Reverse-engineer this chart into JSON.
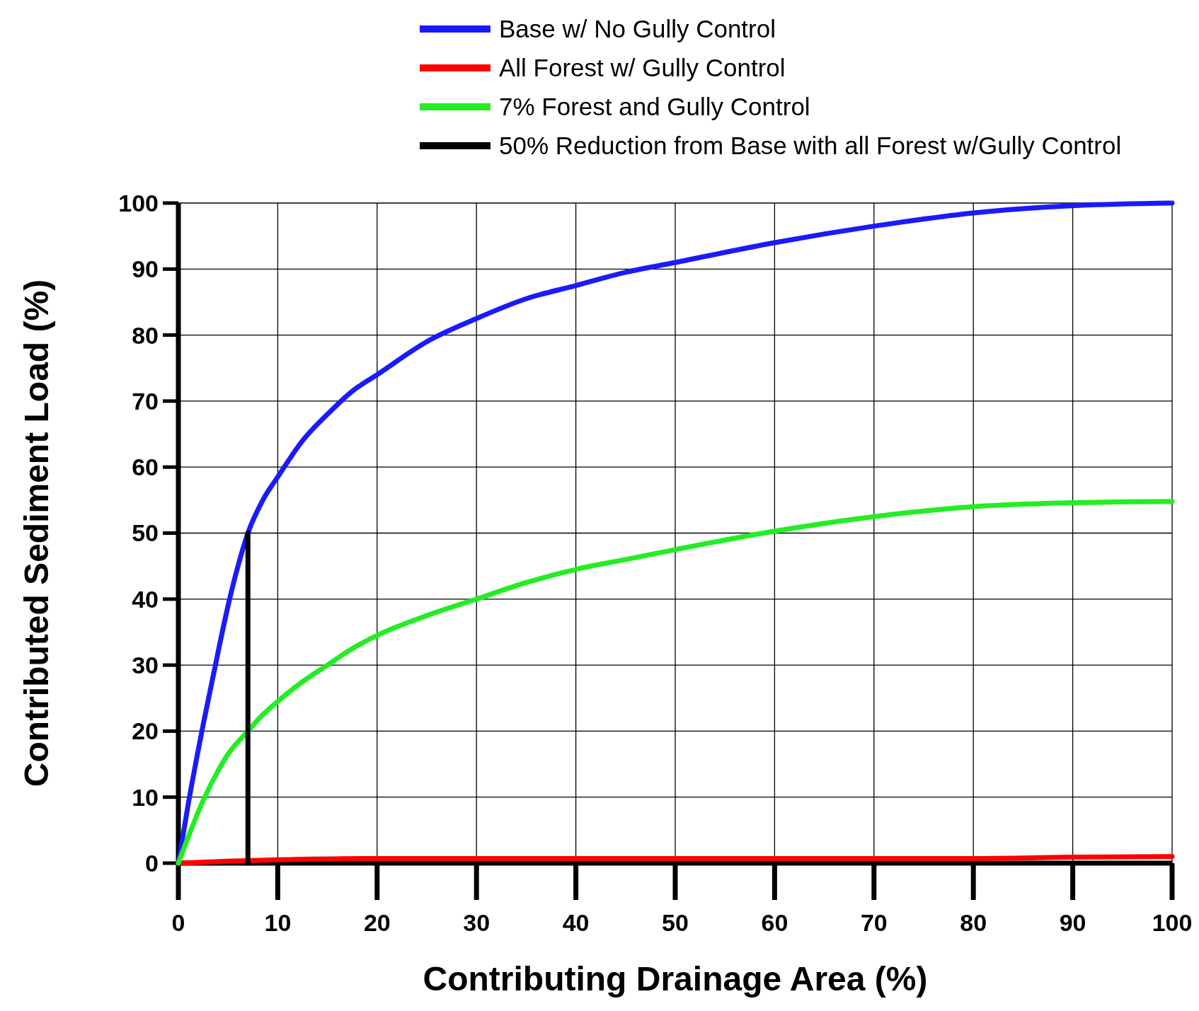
{
  "chart_data": {
    "type": "line",
    "xlabel": "Contributing Drainage Area (%)",
    "ylabel": "Contributed Sediment Load (%)",
    "xlim": [
      0,
      100
    ],
    "ylim": [
      0,
      100
    ],
    "xticks": [
      0,
      10,
      20,
      30,
      40,
      50,
      60,
      70,
      80,
      90,
      100
    ],
    "yticks": [
      0,
      10,
      20,
      30,
      40,
      50,
      60,
      70,
      80,
      90,
      100
    ],
    "grid": true,
    "legend": "top",
    "marker": "none",
    "line_style": "solid",
    "series": [
      {
        "name": "Base w/ No Gully Control",
        "color": "#1a1aff",
        "x": [
          0,
          1,
          2.5,
          4,
          5,
          6,
          7,
          8.5,
          10,
          12.5,
          15,
          17.5,
          20,
          25,
          30,
          35,
          40,
          45,
          50,
          60,
          70,
          80,
          90,
          100
        ],
        "values": [
          0,
          9,
          21,
          32,
          39,
          45,
          50,
          55,
          58.5,
          64,
          68,
          71.5,
          74,
          79,
          82.5,
          85.5,
          87.5,
          89.5,
          91,
          94,
          96.5,
          98.5,
          99.6,
          100
        ]
      },
      {
        "name": "All Forest w/ Gully Control",
        "color": "#ff0000",
        "x": [
          0,
          5,
          10,
          20,
          40,
          60,
          80,
          90,
          100
        ],
        "values": [
          0,
          0.3,
          0.5,
          0.7,
          0.7,
          0.7,
          0.7,
          0.9,
          1
        ]
      },
      {
        "name": "7% Forest and Gully Control",
        "color": "#22ee22",
        "x": [
          0,
          1,
          2.5,
          4,
          5,
          7,
          8.5,
          10,
          12.5,
          15,
          17.5,
          20,
          25,
          30,
          35,
          40,
          45,
          50,
          60,
          70,
          80,
          90,
          100
        ],
        "values": [
          0,
          4,
          9.5,
          14,
          16.5,
          20,
          22.5,
          24.5,
          27.5,
          30,
          32.5,
          34.5,
          37.5,
          40,
          42.5,
          44.5,
          46,
          47.5,
          50.3,
          52.5,
          54,
          54.6,
          54.8
        ]
      },
      {
        "name": "50% Reduction from Base with all Forest w/Gully Control",
        "color": "#000000",
        "x": [
          7,
          7
        ],
        "values": [
          0,
          50
        ]
      }
    ]
  }
}
